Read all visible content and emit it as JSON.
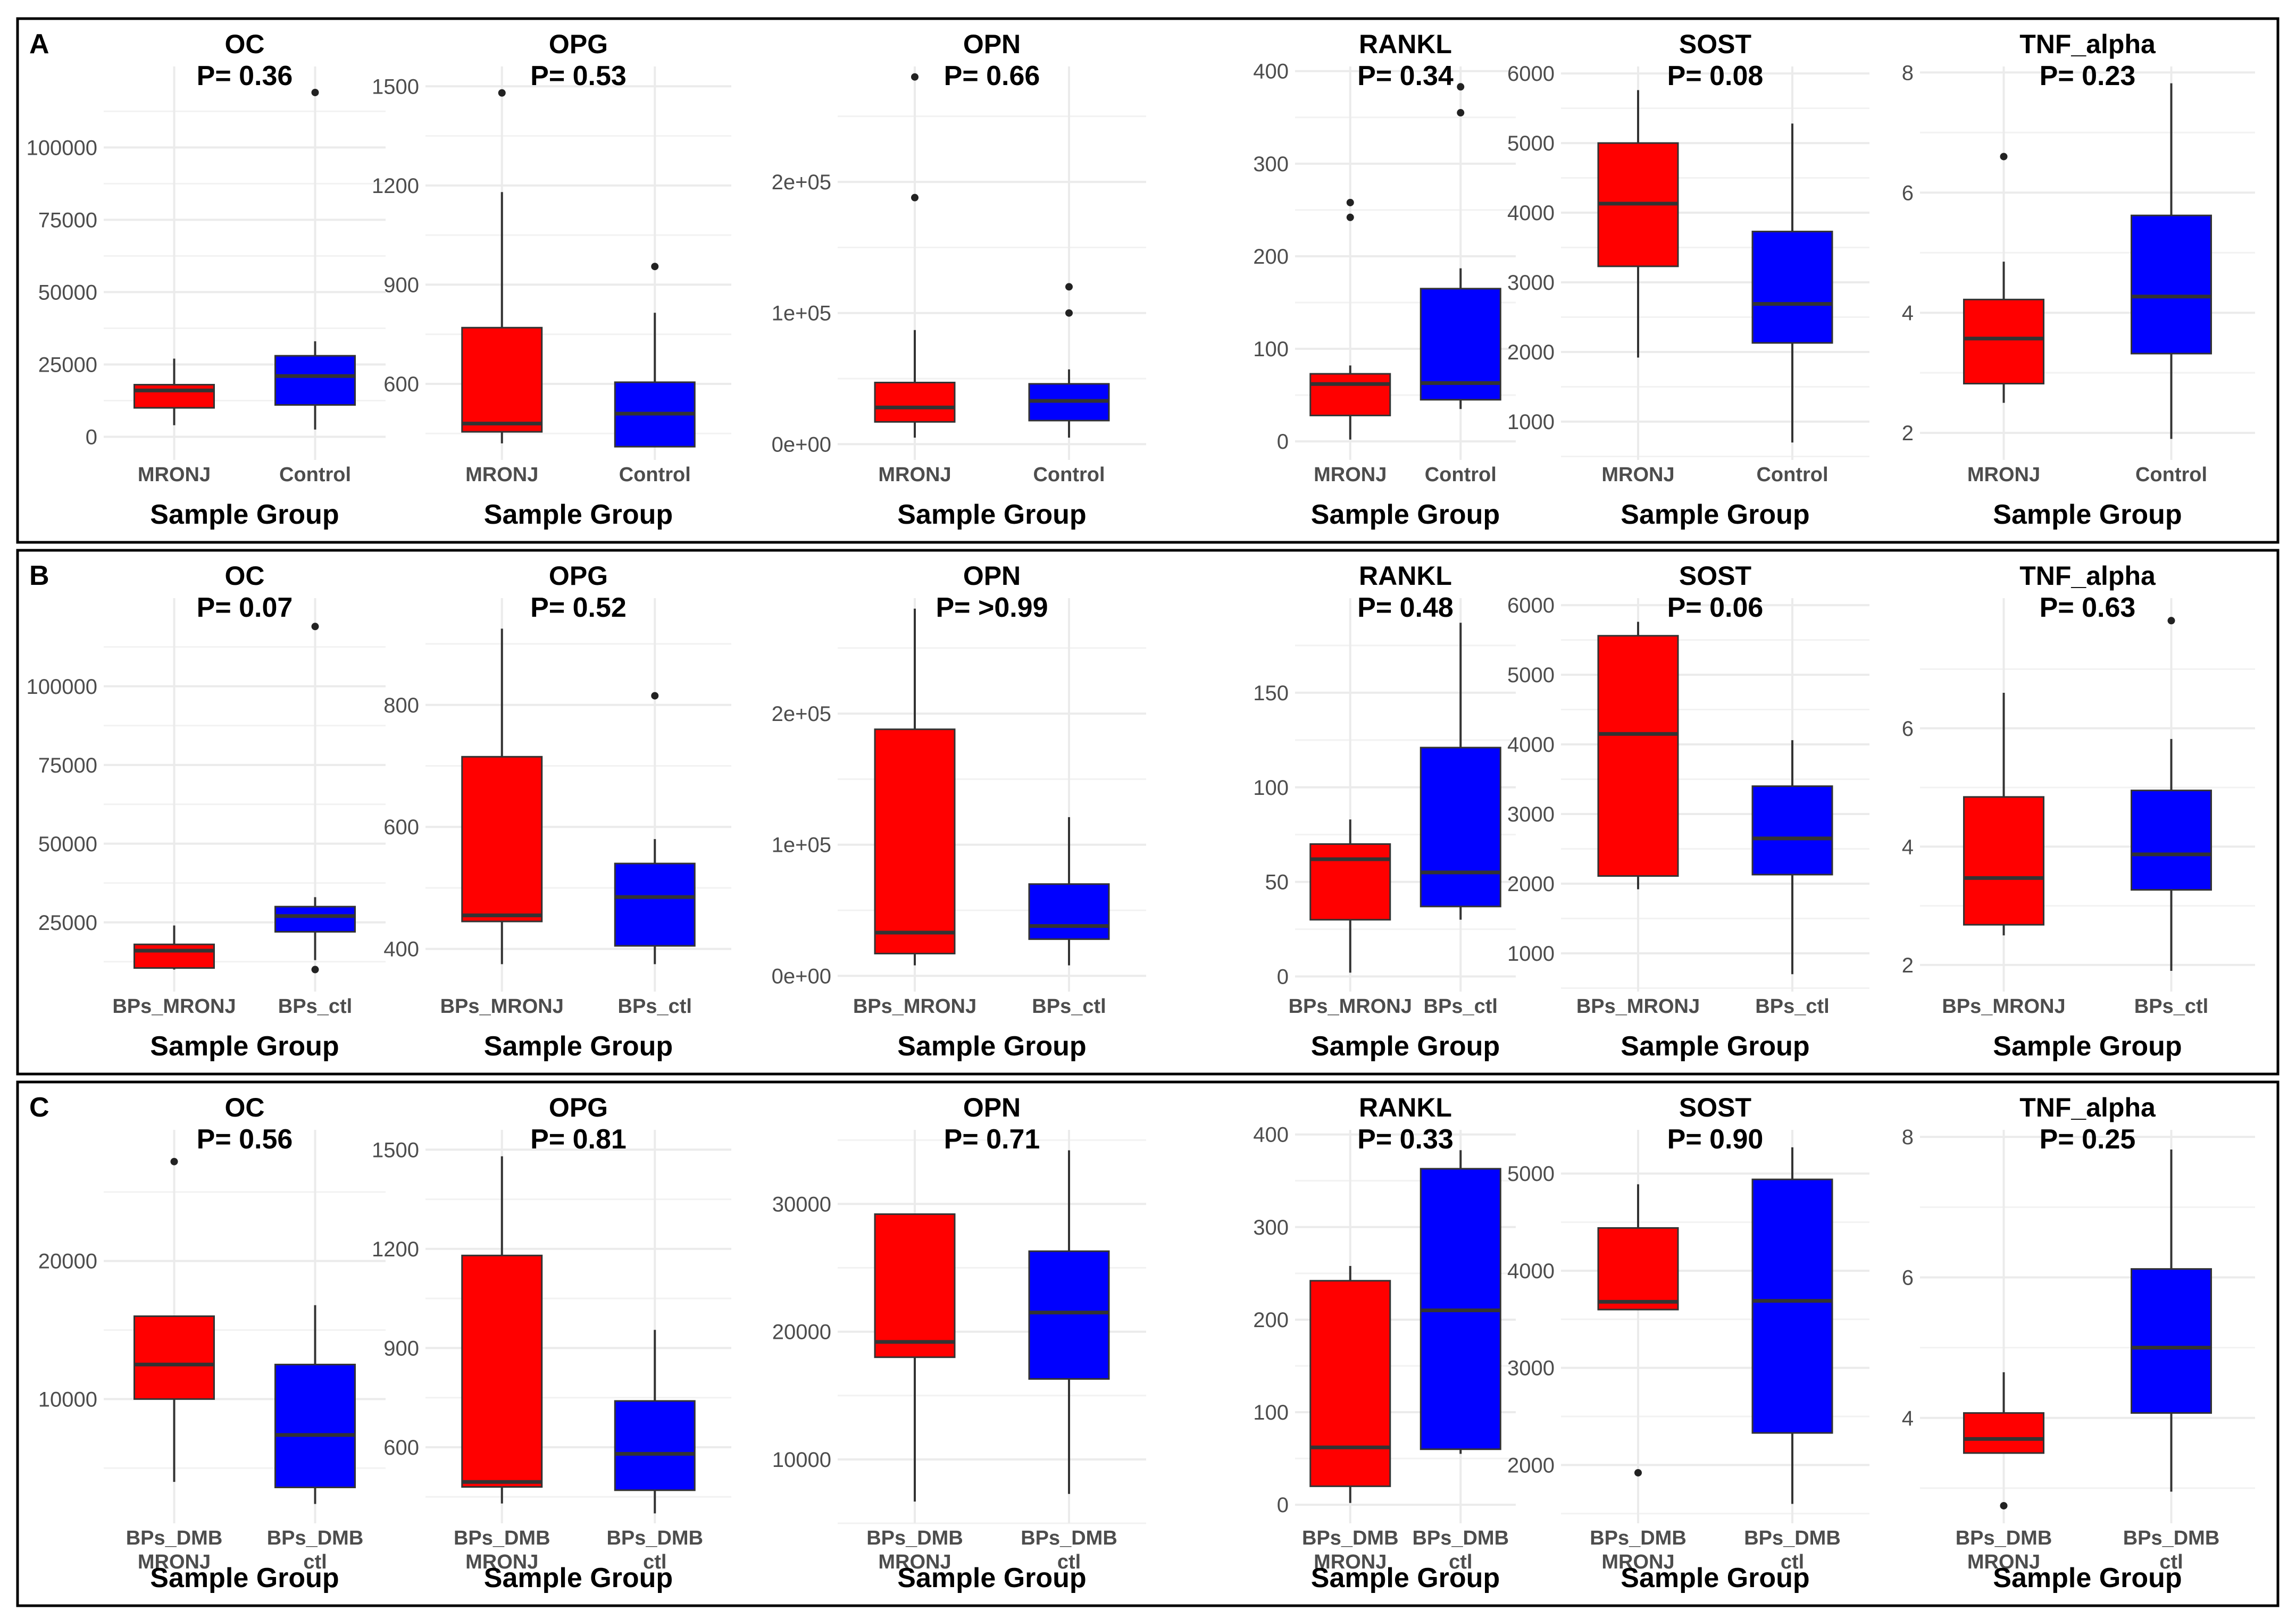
{
  "colors": {
    "case": "#ff0000",
    "control": "#0000ff",
    "grid": "#ebebeb",
    "tick": "#4d4d4d",
    "median": "#333333",
    "frame": "#000000"
  },
  "xlabel": "Sample Group",
  "rows": [
    {
      "letter": "A",
      "group_labels": [
        [
          "MRONJ"
        ],
        [
          "Control"
        ]
      ]
    },
    {
      "letter": "B",
      "group_labels": [
        [
          "BPs_MRONJ"
        ],
        [
          "BPs_ctl"
        ]
      ]
    },
    {
      "letter": "C",
      "group_labels": [
        [
          "BPs_DMB",
          "MRONJ"
        ],
        [
          "BPs_DMB",
          "ctl"
        ]
      ]
    }
  ],
  "chart_data": [
    {
      "type": "boxplot",
      "panel": "A",
      "title": "OC",
      "pvalue": "P= 0.36",
      "xlabel": "Sample Group",
      "categories": [
        "MRONJ",
        "Control"
      ],
      "ylim": [
        -8000,
        128000
      ],
      "ticks": [
        {
          "v": 0,
          "label": "0"
        },
        {
          "v": 25000,
          "label": "25000"
        },
        {
          "v": 50000,
          "label": "50000"
        },
        {
          "v": 75000,
          "label": "75000"
        },
        {
          "v": 100000,
          "label": "100000"
        }
      ],
      "boxes": [
        {
          "wlo": 4000,
          "q1": 10000,
          "med": 16000,
          "q3": 18000,
          "whi": 27000,
          "outliers": []
        },
        {
          "wlo": 2500,
          "q1": 11000,
          "med": 21000,
          "q3": 28000,
          "whi": 33000,
          "outliers": [
            119000
          ]
        }
      ]
    },
    {
      "type": "boxplot",
      "panel": "A",
      "title": "OPG",
      "pvalue": "P= 0.53",
      "xlabel": "Sample Group",
      "categories": [
        "MRONJ",
        "Control"
      ],
      "ylim": [
        370,
        1560
      ],
      "ticks": [
        {
          "v": 600,
          "label": "600"
        },
        {
          "v": 900,
          "label": "900"
        },
        {
          "v": 1200,
          "label": "1200"
        },
        {
          "v": 1500,
          "label": "1500"
        }
      ],
      "boxes": [
        {
          "wlo": 420,
          "q1": 455,
          "med": 480,
          "q3": 770,
          "whi": 1180,
          "outliers": [
            1480
          ]
        },
        {
          "wlo": 420,
          "q1": 410,
          "med": 510,
          "q3": 605,
          "whi": 815,
          "outliers": [
            955
          ]
        }
      ]
    },
    {
      "type": "boxplot",
      "panel": "A",
      "title": "OPN",
      "pvalue": "P= 0.66",
      "xlabel": "Sample Group",
      "categories": [
        "MRONJ",
        "Control"
      ],
      "ylim": [
        -12000,
        288000
      ],
      "ticks": [
        {
          "v": 0,
          "label": "0e+00"
        },
        {
          "v": 100000,
          "label": "1e+05"
        },
        {
          "v": 200000,
          "label": "2e+05"
        }
      ],
      "boxes": [
        {
          "wlo": 5000,
          "q1": 17000,
          "med": 28000,
          "q3": 47000,
          "whi": 87000,
          "outliers": [
            188000,
            280000
          ]
        },
        {
          "wlo": 5000,
          "q1": 18000,
          "med": 33000,
          "q3": 46000,
          "whi": 57000,
          "outliers": [
            100000,
            120000
          ]
        }
      ]
    },
    {
      "type": "boxplot",
      "panel": "A",
      "title": "RANKL",
      "pvalue": "P= 0.34",
      "xlabel": "Sample Group",
      "categories": [
        "MRONJ",
        "Control"
      ],
      "ylim": [
        -20,
        405
      ],
      "ticks": [
        {
          "v": 0,
          "label": "0"
        },
        {
          "v": 100,
          "label": "100"
        },
        {
          "v": 200,
          "label": "200"
        },
        {
          "v": 300,
          "label": "300"
        },
        {
          "v": 400,
          "label": "400"
        }
      ],
      "boxes": [
        {
          "wlo": 2,
          "q1": 28,
          "med": 62,
          "q3": 73,
          "whi": 82,
          "outliers": [
            242,
            258
          ]
        },
        {
          "wlo": 35,
          "q1": 45,
          "med": 63,
          "q3": 165,
          "whi": 187,
          "outliers": [
            355,
            383
          ]
        }
      ]
    },
    {
      "type": "boxplot",
      "panel": "A",
      "title": "SOST",
      "pvalue": "P= 0.08",
      "xlabel": "Sample Group",
      "categories": [
        "MRONJ",
        "Control"
      ],
      "ylim": [
        450,
        6100
      ],
      "ticks": [
        {
          "v": 1000,
          "label": "1000"
        },
        {
          "v": 2000,
          "label": "2000"
        },
        {
          "v": 3000,
          "label": "3000"
        },
        {
          "v": 4000,
          "label": "4000"
        },
        {
          "v": 5000,
          "label": "5000"
        },
        {
          "v": 6000,
          "label": "6000"
        }
      ],
      "boxes": [
        {
          "wlo": 1920,
          "q1": 3230,
          "med": 4130,
          "q3": 5000,
          "whi": 5760,
          "outliers": []
        },
        {
          "wlo": 700,
          "q1": 2130,
          "med": 2690,
          "q3": 3730,
          "whi": 5280,
          "outliers": []
        }
      ]
    },
    {
      "type": "boxplot",
      "panel": "A",
      "title": "TNF_alpha",
      "pvalue": "P= 0.23",
      "xlabel": "Sample Group",
      "categories": [
        "MRONJ",
        "Control"
      ],
      "ylim": [
        1.55,
        8.1
      ],
      "ticks": [
        {
          "v": 2,
          "label": "2"
        },
        {
          "v": 4,
          "label": "4"
        },
        {
          "v": 6,
          "label": "6"
        },
        {
          "v": 8,
          "label": "8"
        }
      ],
      "boxes": [
        {
          "wlo": 2.5,
          "q1": 2.82,
          "med": 3.57,
          "q3": 4.22,
          "whi": 4.85,
          "outliers": [
            6.6
          ]
        },
        {
          "wlo": 1.9,
          "q1": 3.32,
          "med": 4.27,
          "q3": 5.62,
          "whi": 7.82,
          "outliers": []
        }
      ]
    },
    {
      "type": "boxplot",
      "panel": "B",
      "title": "OC",
      "pvalue": "P= 0.07",
      "xlabel": "Sample Group",
      "categories": [
        "BPs_MRONJ",
        "BPs_ctl"
      ],
      "ylim": [
        3000,
        128000
      ],
      "ticks": [
        {
          "v": 25000,
          "label": "25000"
        },
        {
          "v": 50000,
          "label": "50000"
        },
        {
          "v": 75000,
          "label": "75000"
        },
        {
          "v": 100000,
          "label": "100000"
        }
      ],
      "boxes": [
        {
          "wlo": 10000,
          "q1": 10500,
          "med": 16000,
          "q3": 18000,
          "whi": 24000,
          "outliers": []
        },
        {
          "wlo": 13000,
          "q1": 22000,
          "med": 27000,
          "q3": 30000,
          "whi": 33000,
          "outliers": [
            10000,
            119000
          ]
        }
      ]
    },
    {
      "type": "boxplot",
      "panel": "B",
      "title": "OPG",
      "pvalue": "P= 0.52",
      "xlabel": "Sample Group",
      "categories": [
        "BPs_MRONJ",
        "BPs_ctl"
      ],
      "ylim": [
        330,
        975
      ],
      "ticks": [
        {
          "v": 400,
          "label": "400"
        },
        {
          "v": 600,
          "label": "600"
        },
        {
          "v": 800,
          "label": "800"
        }
      ],
      "boxes": [
        {
          "wlo": 375,
          "q1": 445,
          "med": 455,
          "q3": 715,
          "whi": 925,
          "outliers": []
        },
        {
          "wlo": 375,
          "q1": 405,
          "med": 485,
          "q3": 540,
          "whi": 580,
          "outliers": [
            815
          ]
        }
      ]
    },
    {
      "type": "boxplot",
      "panel": "B",
      "title": "OPN",
      "pvalue": "P= >0.99",
      "xlabel": "Sample Group",
      "categories": [
        "BPs_MRONJ",
        "BPs_ctl"
      ],
      "ylim": [
        -12000,
        288000
      ],
      "ticks": [
        {
          "v": 0,
          "label": "0e+00"
        },
        {
          "v": 100000,
          "label": "1e+05"
        },
        {
          "v": 200000,
          "label": "2e+05"
        }
      ],
      "boxes": [
        {
          "wlo": 8000,
          "q1": 17000,
          "med": 33000,
          "q3": 188000,
          "whi": 280000,
          "outliers": []
        },
        {
          "wlo": 8000,
          "q1": 28000,
          "med": 38000,
          "q3": 70000,
          "whi": 121000,
          "outliers": []
        }
      ]
    },
    {
      "type": "boxplot",
      "panel": "B",
      "title": "RANKL",
      "pvalue": "P= 0.48",
      "xlabel": "Sample Group",
      "categories": [
        "BPs_MRONJ",
        "BPs_ctl"
      ],
      "ylim": [
        -8,
        200
      ],
      "ticks": [
        {
          "v": 0,
          "label": "0"
        },
        {
          "v": 50,
          "label": "50"
        },
        {
          "v": 100,
          "label": "100"
        },
        {
          "v": 150,
          "label": "150"
        }
      ],
      "boxes": [
        {
          "wlo": 2,
          "q1": 30,
          "med": 62,
          "q3": 70,
          "whi": 83,
          "outliers": []
        },
        {
          "wlo": 30,
          "q1": 37,
          "med": 55,
          "q3": 121,
          "whi": 187,
          "outliers": []
        }
      ]
    },
    {
      "type": "boxplot",
      "panel": "B",
      "title": "SOST",
      "pvalue": "P= 0.06",
      "xlabel": "Sample Group",
      "categories": [
        "BPs_MRONJ",
        "BPs_ctl"
      ],
      "ylim": [
        450,
        6100
      ],
      "ticks": [
        {
          "v": 1000,
          "label": "1000"
        },
        {
          "v": 2000,
          "label": "2000"
        },
        {
          "v": 3000,
          "label": "3000"
        },
        {
          "v": 4000,
          "label": "4000"
        },
        {
          "v": 5000,
          "label": "5000"
        },
        {
          "v": 6000,
          "label": "6000"
        }
      ],
      "boxes": [
        {
          "wlo": 1920,
          "q1": 2110,
          "med": 4150,
          "q3": 5560,
          "whi": 5760,
          "outliers": []
        },
        {
          "wlo": 700,
          "q1": 2130,
          "med": 2650,
          "q3": 3400,
          "whi": 4060,
          "outliers": []
        }
      ]
    },
    {
      "type": "boxplot",
      "panel": "B",
      "title": "TNF_alpha",
      "pvalue": "P= 0.63",
      "xlabel": "Sample Group",
      "categories": [
        "BPs_MRONJ",
        "BPs_ctl"
      ],
      "ylim": [
        1.55,
        8.2
      ],
      "ticks": [
        {
          "v": 2,
          "label": "2"
        },
        {
          "v": 4,
          "label": "4"
        },
        {
          "v": 6,
          "label": "6"
        }
      ],
      "boxes": [
        {
          "wlo": 2.5,
          "q1": 2.68,
          "med": 3.47,
          "q3": 4.84,
          "whi": 6.6,
          "outliers": []
        },
        {
          "wlo": 1.9,
          "q1": 3.27,
          "med": 3.87,
          "q3": 4.95,
          "whi": 5.82,
          "outliers": [
            7.82
          ]
        }
      ]
    },
    {
      "type": "boxplot",
      "panel": "C",
      "title": "OC",
      "pvalue": "P= 0.56",
      "xlabel": "Sample Group",
      "categories": [
        "BPs_DMB MRONJ",
        "BPs_DMB ctl"
      ],
      "ylim": [
        1000,
        29500
      ],
      "ticks": [
        {
          "v": 10000,
          "label": "10000"
        },
        {
          "v": 20000,
          "label": "20000"
        }
      ],
      "boxes": [
        {
          "wlo": 4000,
          "q1": 10000,
          "med": 12500,
          "q3": 16000,
          "whi": 16000,
          "outliers": [
            27200
          ]
        },
        {
          "wlo": 2400,
          "q1": 3600,
          "med": 7400,
          "q3": 12500,
          "whi": 16800,
          "outliers": []
        }
      ]
    },
    {
      "type": "boxplot",
      "panel": "C",
      "title": "OPG",
      "pvalue": "P= 0.81",
      "xlabel": "Sample Group",
      "categories": [
        "BPs_DMB MRONJ",
        "BPs_DMB ctl"
      ],
      "ylim": [
        370,
        1560
      ],
      "ticks": [
        {
          "v": 600,
          "label": "600"
        },
        {
          "v": 900,
          "label": "900"
        },
        {
          "v": 1200,
          "label": "1200"
        },
        {
          "v": 1500,
          "label": "1500"
        }
      ],
      "boxes": [
        {
          "wlo": 430,
          "q1": 480,
          "med": 495,
          "q3": 1180,
          "whi": 1480,
          "outliers": []
        },
        {
          "wlo": 400,
          "q1": 470,
          "med": 580,
          "q3": 740,
          "whi": 955,
          "outliers": []
        }
      ]
    },
    {
      "type": "boxplot",
      "panel": "C",
      "title": "OPN",
      "pvalue": "P= 0.71",
      "xlabel": "Sample Group",
      "categories": [
        "BPs_DMB MRONJ",
        "BPs_DMB ctl"
      ],
      "ylim": [
        5000,
        35800
      ],
      "ticks": [
        {
          "v": 10000,
          "label": "10000"
        },
        {
          "v": 20000,
          "label": "20000"
        },
        {
          "v": 30000,
          "label": "30000"
        }
      ],
      "boxes": [
        {
          "wlo": 6700,
          "q1": 18000,
          "med": 19200,
          "q3": 29200,
          "whi": 29200,
          "outliers": []
        },
        {
          "wlo": 7300,
          "q1": 16300,
          "med": 21500,
          "q3": 26300,
          "whi": 34200,
          "outliers": []
        }
      ]
    },
    {
      "type": "boxplot",
      "panel": "C",
      "title": "RANKL",
      "pvalue": "P= 0.33",
      "xlabel": "Sample Group",
      "categories": [
        "BPs_DMB MRONJ",
        "BPs_DMB ctl"
      ],
      "ylim": [
        -20,
        405
      ],
      "ticks": [
        {
          "v": 0,
          "label": "0"
        },
        {
          "v": 100,
          "label": "100"
        },
        {
          "v": 200,
          "label": "200"
        },
        {
          "v": 300,
          "label": "300"
        },
        {
          "v": 400,
          "label": "400"
        }
      ],
      "boxes": [
        {
          "wlo": 2,
          "q1": 20,
          "med": 62,
          "q3": 242,
          "whi": 258,
          "outliers": []
        },
        {
          "wlo": 55,
          "q1": 60,
          "med": 210,
          "q3": 363,
          "whi": 383,
          "outliers": []
        }
      ]
    },
    {
      "type": "boxplot",
      "panel": "C",
      "title": "SOST",
      "pvalue": "P= 0.90",
      "xlabel": "Sample Group",
      "categories": [
        "BPs_DMB MRONJ",
        "BPs_DMB ctl"
      ],
      "ylim": [
        1400,
        5450
      ],
      "ticks": [
        {
          "v": 2000,
          "label": "2000"
        },
        {
          "v": 3000,
          "label": "3000"
        },
        {
          "v": 4000,
          "label": "4000"
        },
        {
          "v": 5000,
          "label": "5000"
        }
      ],
      "boxes": [
        {
          "wlo": 3600,
          "q1": 3600,
          "med": 3680,
          "q3": 4440,
          "whi": 4890,
          "outliers": [
            1920
          ]
        },
        {
          "wlo": 1600,
          "q1": 2330,
          "med": 3690,
          "q3": 4940,
          "whi": 5270,
          "outliers": []
        }
      ]
    },
    {
      "type": "boxplot",
      "panel": "C",
      "title": "TNF_alpha",
      "pvalue": "P= 0.25",
      "xlabel": "Sample Group",
      "categories": [
        "BPs_DMB MRONJ",
        "BPs_DMB ctl"
      ],
      "ylim": [
        2.5,
        8.1
      ],
      "ticks": [
        {
          "v": 4,
          "label": "4"
        },
        {
          "v": 6,
          "label": "6"
        },
        {
          "v": 8,
          "label": "8"
        }
      ],
      "boxes": [
        {
          "wlo": 3.5,
          "q1": 3.5,
          "med": 3.7,
          "q3": 4.07,
          "whi": 4.65,
          "outliers": [
            2.75
          ]
        },
        {
          "wlo": 2.95,
          "q1": 4.07,
          "med": 5.0,
          "q3": 6.12,
          "whi": 7.82,
          "outliers": []
        }
      ]
    }
  ]
}
